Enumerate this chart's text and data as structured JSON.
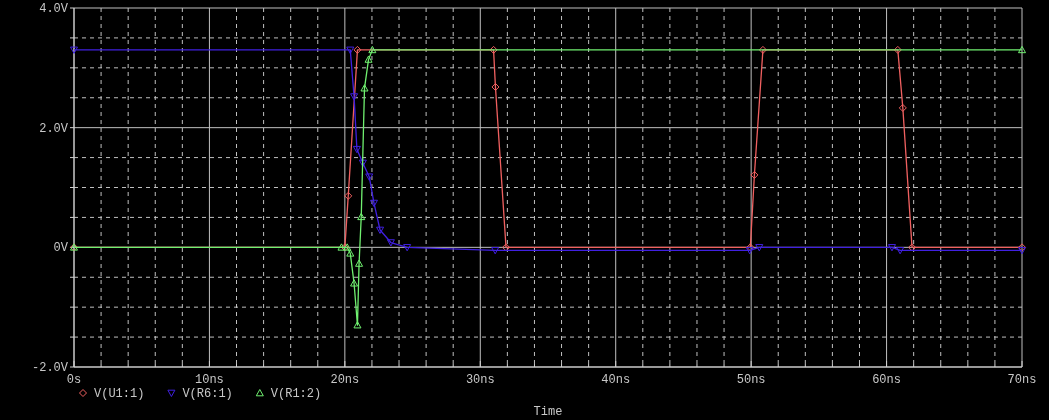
{
  "chart_data": {
    "type": "line",
    "xlabel": "Time",
    "xlim": [
      0,
      70
    ],
    "ylim": [
      -2,
      4
    ],
    "xticks": [
      {
        "value": 0,
        "label": "0s"
      },
      {
        "value": 2,
        "label": null
      },
      {
        "value": 4,
        "label": null
      },
      {
        "value": 6,
        "label": null
      },
      {
        "value": 8,
        "label": null
      },
      {
        "value": 10,
        "label": "10ns"
      },
      {
        "value": 12,
        "label": null
      },
      {
        "value": 14,
        "label": null
      },
      {
        "value": 16,
        "label": null
      },
      {
        "value": 18,
        "label": null
      },
      {
        "value": 20,
        "label": "20ns"
      },
      {
        "value": 22,
        "label": null
      },
      {
        "value": 24,
        "label": null
      },
      {
        "value": 26,
        "label": null
      },
      {
        "value": 28,
        "label": null
      },
      {
        "value": 30,
        "label": "30ns"
      },
      {
        "value": 32,
        "label": null
      },
      {
        "value": 34,
        "label": null
      },
      {
        "value": 36,
        "label": null
      },
      {
        "value": 38,
        "label": null
      },
      {
        "value": 40,
        "label": "40ns"
      },
      {
        "value": 42,
        "label": null
      },
      {
        "value": 44,
        "label": null
      },
      {
        "value": 46,
        "label": null
      },
      {
        "value": 48,
        "label": null
      },
      {
        "value": 50,
        "label": "50ns"
      },
      {
        "value": 52,
        "label": null
      },
      {
        "value": 54,
        "label": null
      },
      {
        "value": 56,
        "label": null
      },
      {
        "value": 58,
        "label": null
      },
      {
        "value": 60,
        "label": "60ns"
      },
      {
        "value": 62,
        "label": null
      },
      {
        "value": 64,
        "label": null
      },
      {
        "value": 66,
        "label": null
      },
      {
        "value": 68,
        "label": null
      },
      {
        "value": 70,
        "label": "70ns"
      }
    ],
    "yticks": [
      {
        "value": -2,
        "label": "-2.0V"
      },
      {
        "value": -1.5,
        "label": null
      },
      {
        "value": -1,
        "label": null
      },
      {
        "value": -0.5,
        "label": null
      },
      {
        "value": 0,
        "label": "0V"
      },
      {
        "value": 0.5,
        "label": null
      },
      {
        "value": 1,
        "label": null
      },
      {
        "value": 1.5,
        "label": null
      },
      {
        "value": 2,
        "label": "2.0V"
      },
      {
        "value": 2.5,
        "label": null
      },
      {
        "value": 3,
        "label": null
      },
      {
        "value": 3.5,
        "label": null
      },
      {
        "value": 4,
        "label": "4.0V"
      }
    ],
    "grid": true,
    "legend": "bottom left",
    "line_style": "solid",
    "series": [
      {
        "name": "V(U1:1)",
        "color": "#f06060",
        "marker": "diamond",
        "x": [
          0,
          20,
          20.25,
          20.93,
          30.98,
          31.12,
          31.9,
          49.94,
          50.24,
          50.87,
          60.83,
          61.2,
          61.88,
          70
        ],
        "values": [
          0,
          0,
          0.86,
          3.3,
          3.3,
          2.68,
          0,
          0,
          1.21,
          3.3,
          3.3,
          2.33,
          0,
          0
        ]
      },
      {
        "name": "V(R6:1)",
        "color": "#4020e0",
        "marker": "triangle-down",
        "x": [
          0,
          20.4,
          20.68,
          20.89,
          21.33,
          21.8,
          22.15,
          22.6,
          23.4,
          24.6,
          31.1,
          49.9,
          50.6,
          60.4,
          61,
          70
        ],
        "values": [
          3.3,
          3.3,
          2.52,
          1.64,
          1.41,
          1.18,
          0.74,
          0.29,
          0.08,
          0,
          -0.05,
          -0.05,
          0,
          0,
          -0.05,
          -0.05
        ]
      },
      {
        "name": "V(R1:2)",
        "color": "#70f070",
        "marker": "triangle",
        "x": [
          0,
          19.75,
          20.17,
          20.4,
          20.68,
          20.93,
          21.05,
          21.21,
          21.45,
          21.75,
          22.03,
          70
        ],
        "values": [
          0,
          0,
          0,
          -0.1,
          -0.6,
          -1.3,
          -0.27,
          0.51,
          2.66,
          3.14,
          3.3,
          3.3
        ]
      }
    ]
  }
}
